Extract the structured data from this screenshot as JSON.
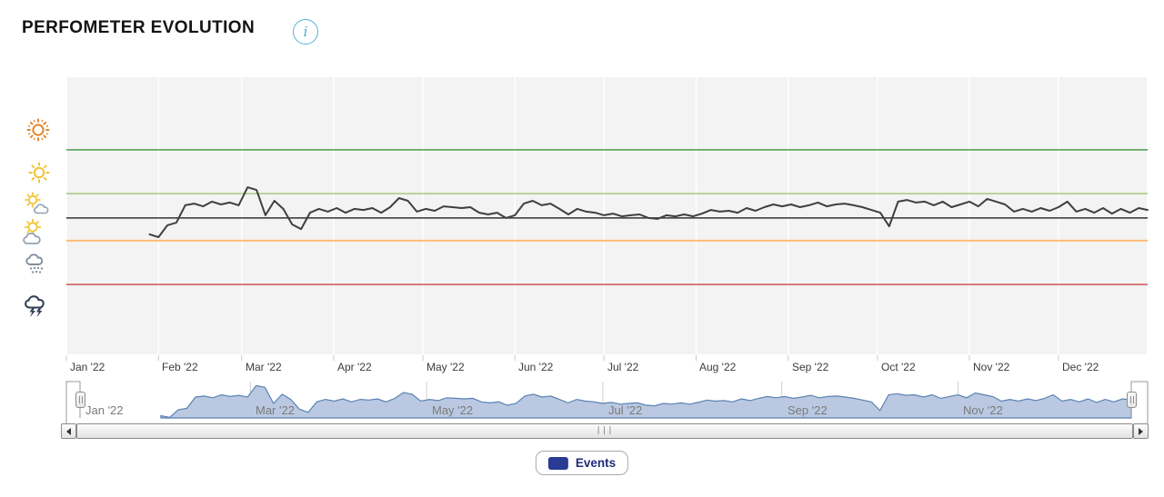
{
  "header": {
    "title": "PERFOMETER EVOLUTION",
    "info_label": "i"
  },
  "legend": {
    "items": [
      {
        "label": "Events",
        "color": "#2a3b94"
      }
    ]
  },
  "scrollbar": {
    "grip": "|||"
  },
  "chart_data": {
    "type": "line",
    "title": "PERFOMETER EVOLUTION",
    "plot_bg": "#f3f3f3",
    "x_axis": {
      "tick_labels": [
        "Jan '22",
        "Feb '22",
        "Mar '22",
        "Apr '22",
        "May '22",
        "Jun '22",
        "Jul '22",
        "Aug '22",
        "Sep '22",
        "Oct '22",
        "Nov '22",
        "Dec '22"
      ],
      "tick_days": [
        1,
        32,
        60,
        91,
        121,
        152,
        182,
        213,
        244,
        274,
        305,
        335
      ]
    },
    "y_axis": {
      "type": "weather-icons",
      "ylim": [
        0,
        10
      ],
      "icons": [
        {
          "name": "bright-sun",
          "level": 8.1
        },
        {
          "name": "sun",
          "level": 6.55
        },
        {
          "name": "sun-behind-cloud",
          "level": 5.45
        },
        {
          "name": "sun-behind-large-cloud",
          "level": 4.4
        },
        {
          "name": "rain-cloud",
          "level": 3.3
        },
        {
          "name": "storm-cloud",
          "level": 1.75
        }
      ]
    },
    "plot_lines": [
      {
        "name": "upper-green",
        "value": 7.38,
        "color": "#4a9b4a",
        "width": 1.5
      },
      {
        "name": "light-green",
        "value": 5.8,
        "color": "#a6c97f",
        "width": 1.5
      },
      {
        "name": "black-baseline",
        "value": 4.92,
        "color": "#333333",
        "width": 1.5
      },
      {
        "name": "orange-warning",
        "value": 4.1,
        "color": "#fbbe77",
        "width": 2
      },
      {
        "name": "red-critical",
        "value": 2.52,
        "color": "#d05353",
        "width": 1.5
      }
    ],
    "series": [
      {
        "name": "Events",
        "color": "#3f3f3f",
        "x_unit": "day-of-year-2022",
        "points": [
          [
            29,
            4.33
          ],
          [
            32,
            4.23
          ],
          [
            35,
            4.66
          ],
          [
            38,
            4.75
          ],
          [
            41,
            5.38
          ],
          [
            44,
            5.44
          ],
          [
            47,
            5.34
          ],
          [
            50,
            5.51
          ],
          [
            53,
            5.41
          ],
          [
            56,
            5.48
          ],
          [
            59,
            5.38
          ],
          [
            62,
            6.03
          ],
          [
            65,
            5.93
          ],
          [
            68,
            5.02
          ],
          [
            71,
            5.54
          ],
          [
            74,
            5.25
          ],
          [
            77,
            4.69
          ],
          [
            80,
            4.52
          ],
          [
            83,
            5.11
          ],
          [
            86,
            5.25
          ],
          [
            89,
            5.15
          ],
          [
            92,
            5.28
          ],
          [
            95,
            5.11
          ],
          [
            98,
            5.25
          ],
          [
            101,
            5.21
          ],
          [
            104,
            5.28
          ],
          [
            107,
            5.11
          ],
          [
            110,
            5.31
          ],
          [
            113,
            5.64
          ],
          [
            116,
            5.54
          ],
          [
            119,
            5.15
          ],
          [
            122,
            5.25
          ],
          [
            125,
            5.18
          ],
          [
            128,
            5.34
          ],
          [
            131,
            5.31
          ],
          [
            134,
            5.28
          ],
          [
            137,
            5.31
          ],
          [
            140,
            5.11
          ],
          [
            143,
            5.05
          ],
          [
            146,
            5.11
          ],
          [
            149,
            4.92
          ],
          [
            152,
            5.02
          ],
          [
            155,
            5.44
          ],
          [
            158,
            5.54
          ],
          [
            161,
            5.38
          ],
          [
            164,
            5.44
          ],
          [
            167,
            5.25
          ],
          [
            170,
            5.05
          ],
          [
            173,
            5.25
          ],
          [
            176,
            5.15
          ],
          [
            179,
            5.11
          ],
          [
            182,
            5.02
          ],
          [
            185,
            5.08
          ],
          [
            188,
            4.98
          ],
          [
            191,
            5.02
          ],
          [
            194,
            5.05
          ],
          [
            197,
            4.92
          ],
          [
            200,
            4.89
          ],
          [
            203,
            5.02
          ],
          [
            206,
            4.98
          ],
          [
            209,
            5.05
          ],
          [
            212,
            4.98
          ],
          [
            215,
            5.08
          ],
          [
            218,
            5.21
          ],
          [
            221,
            5.15
          ],
          [
            224,
            5.18
          ],
          [
            227,
            5.11
          ],
          [
            230,
            5.28
          ],
          [
            233,
            5.18
          ],
          [
            236,
            5.31
          ],
          [
            239,
            5.41
          ],
          [
            242,
            5.34
          ],
          [
            245,
            5.41
          ],
          [
            248,
            5.31
          ],
          [
            251,
            5.38
          ],
          [
            254,
            5.48
          ],
          [
            257,
            5.34
          ],
          [
            260,
            5.41
          ],
          [
            263,
            5.44
          ],
          [
            266,
            5.38
          ],
          [
            269,
            5.31
          ],
          [
            272,
            5.21
          ],
          [
            275,
            5.11
          ],
          [
            278,
            4.62
          ],
          [
            281,
            5.51
          ],
          [
            284,
            5.57
          ],
          [
            287,
            5.48
          ],
          [
            290,
            5.51
          ],
          [
            293,
            5.38
          ],
          [
            296,
            5.51
          ],
          [
            299,
            5.31
          ],
          [
            302,
            5.41
          ],
          [
            305,
            5.51
          ],
          [
            308,
            5.34
          ],
          [
            311,
            5.61
          ],
          [
            314,
            5.51
          ],
          [
            317,
            5.41
          ],
          [
            320,
            5.15
          ],
          [
            323,
            5.25
          ],
          [
            326,
            5.15
          ],
          [
            329,
            5.28
          ],
          [
            332,
            5.18
          ],
          [
            335,
            5.31
          ],
          [
            338,
            5.51
          ],
          [
            341,
            5.15
          ],
          [
            344,
            5.25
          ],
          [
            347,
            5.11
          ],
          [
            350,
            5.28
          ],
          [
            353,
            5.08
          ],
          [
            356,
            5.25
          ],
          [
            359,
            5.11
          ],
          [
            362,
            5.28
          ],
          [
            365,
            5.21
          ]
        ]
      }
    ],
    "navigator": {
      "labels": [
        "Jan '22",
        "Mar '22",
        "May '22",
        "Jul '22",
        "Sep '22",
        "Nov '22"
      ],
      "label_days": [
        1,
        60,
        121,
        182,
        244,
        305
      ],
      "gridline_days": [
        60,
        121,
        182,
        244,
        305
      ],
      "fill": "#bac9e1",
      "stroke": "#5b82b2"
    }
  }
}
